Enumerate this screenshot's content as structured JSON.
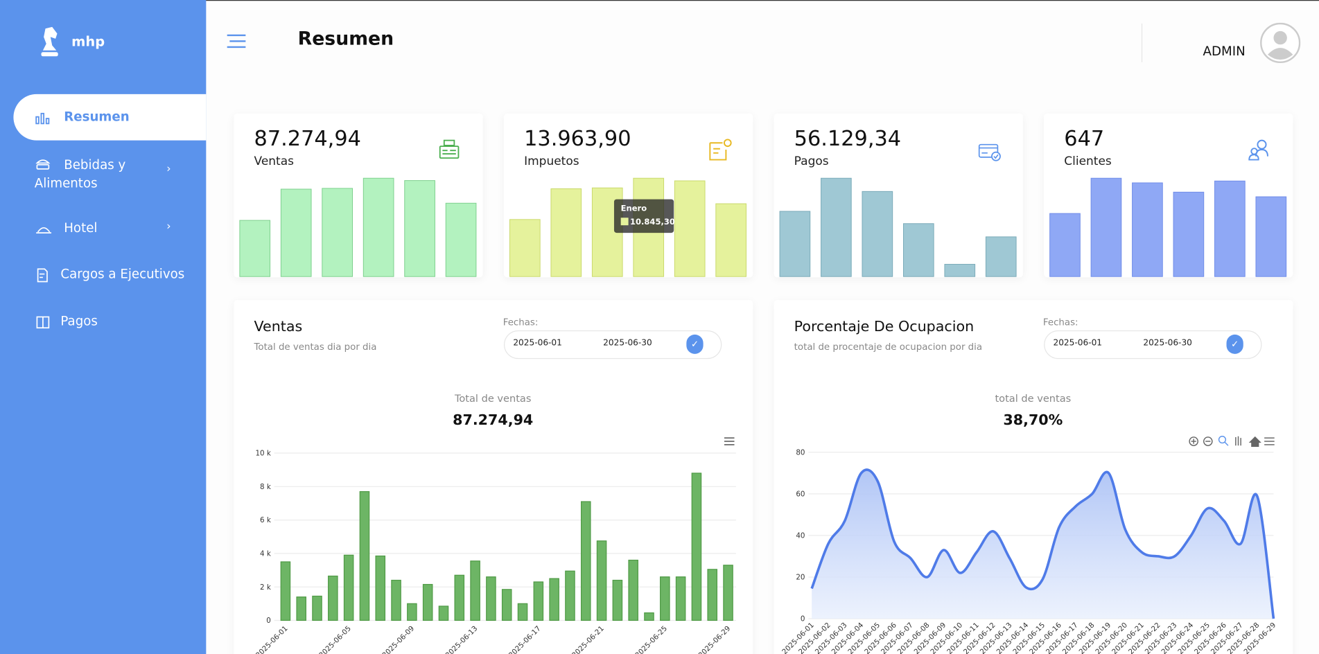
{
  "sidebar": {
    "brand": "mhp",
    "menu": [
      "Resumen",
      "Bebidas y Alimentos",
      "Hotel",
      "Cargos a Ejecutivos",
      "Pagos"
    ]
  },
  "header": {
    "title": "Resumen",
    "user": "ADMIN"
  },
  "kpis": [
    {
      "value": "87.274,94",
      "label": "Ventas",
      "color": "#b3f2bf",
      "stroke": "#7ccf8c",
      "bars": [
        7200,
        11200,
        11300,
        12600,
        12300,
        9400
      ]
    },
    {
      "value": "13.963,90",
      "label": "Impuetos",
      "color": "#e5f29c",
      "stroke": "#c9d96a",
      "bars": [
        6980,
        10740,
        10845.3,
        12030,
        11710,
        8910
      ],
      "tooltip": {
        "category": "Enero",
        "value_label": "10.845,30"
      }
    },
    {
      "value": "56.129,34",
      "label": "Pagos",
      "color": "#9fc8d4",
      "stroke": "#7aaab8",
      "bars": [
        6900,
        10400,
        9000,
        5600,
        1300,
        4200
      ]
    },
    {
      "value": "647",
      "label": "Clientes",
      "color": "#8fa8f5",
      "stroke": "#6f8ce8",
      "bars": [
        6800,
        10600,
        10100,
        9100,
        10300,
        8600
      ]
    }
  ],
  "chart_data": [
    {
      "type": "bar",
      "title": "Ventas",
      "subtitle": "Total de ventas dia por dia",
      "date_label": "Fechas:",
      "date_from": "2025-06-01",
      "date_to": "2025-06-30",
      "total_label": "Total de ventas",
      "total": "87.274,94",
      "color": "#6db565",
      "categories": [
        "2025-06-01",
        null,
        null,
        null,
        "2025-06-05",
        null,
        null,
        null,
        "2025-06-09",
        null,
        null,
        null,
        "2025-06-13",
        null,
        null,
        null,
        "2025-06-17",
        null,
        null,
        null,
        "2025-06-21",
        null,
        null,
        null,
        "2025-06-25",
        null,
        null,
        null,
        "2025-06-29"
      ],
      "values": [
        3500,
        1400,
        1450,
        2650,
        3900,
        7700,
        3850,
        2400,
        1000,
        2150,
        850,
        2700,
        3550,
        2600,
        1850,
        1000,
        2300,
        2500,
        2950,
        7100,
        4750,
        2400,
        3600,
        450,
        2600,
        2600,
        8800,
        3050,
        3300
      ],
      "ylim": [
        0,
        10000
      ],
      "yticks": [
        0,
        {
          "value": 2000,
          "label": "2 k"
        },
        {
          "value": 4000,
          "label": "4 k"
        },
        {
          "value": 6000,
          "label": "6 k"
        },
        {
          "value": 8000,
          "label": "8 k"
        },
        {
          "value": 10000,
          "label": "10 k"
        }
      ],
      "grid": true
    },
    {
      "type": "area",
      "title": "Porcentaje De Ocupacion",
      "subtitle": "total de procentaje de ocupacion por dia",
      "date_label": "Fechas:",
      "date_from": "2025-06-01",
      "date_to": "2025-06-30",
      "total_label": "total de ventas",
      "total": "38,70%",
      "color": "#4f7be8",
      "categories": [
        "2025-06-01",
        "2025-06-02",
        "2025-06-03",
        "2025-06-04",
        "2025-06-05",
        "2025-06-06",
        "2025-06-07",
        "2025-06-08",
        "2025-06-09",
        "2025-06-10",
        "2025-06-11",
        "2025-06-12",
        "2025-06-13",
        "2025-06-14",
        "2025-06-15",
        "2025-06-16",
        "2025-06-17",
        "2025-06-18",
        "2025-06-19",
        "2025-06-20",
        "2025-06-21",
        "2025-06-22",
        "2025-06-23",
        "2025-06-24",
        "2025-06-25",
        "2025-06-26",
        "2025-06-27",
        "2025-06-28",
        "2025-06-29"
      ],
      "values": [
        14.5,
        36,
        47,
        70,
        66,
        37,
        29,
        20,
        33,
        22,
        32,
        42,
        29,
        15,
        19,
        44,
        54,
        60,
        70,
        43,
        32,
        30,
        30,
        40,
        53,
        47,
        36,
        59,
        0
      ],
      "ylim": [
        0,
        80
      ],
      "yticks": [
        0,
        20,
        40,
        60,
        80
      ],
      "grid": true
    }
  ]
}
